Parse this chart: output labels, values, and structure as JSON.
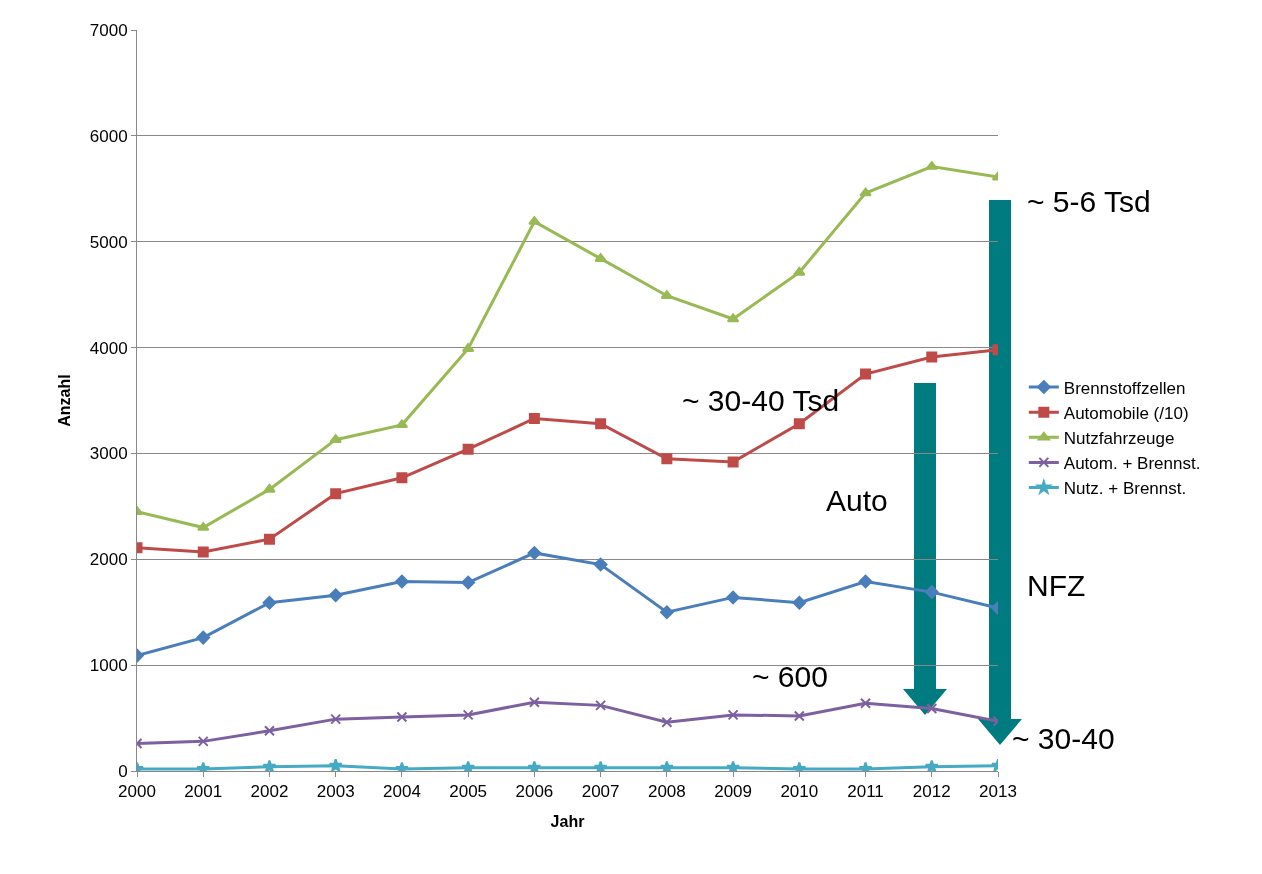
{
  "chart_data": {
    "type": "line",
    "xlabel": "Jahr",
    "ylabel": "Anzahl",
    "x": [
      2000,
      2001,
      2002,
      2003,
      2004,
      2005,
      2006,
      2007,
      2008,
      2009,
      2010,
      2011,
      2012,
      2013
    ],
    "xlim": [
      2000,
      2013
    ],
    "xticks": [
      2000,
      2001,
      2002,
      2003,
      2004,
      2005,
      2006,
      2007,
      2008,
      2009,
      2010,
      2011,
      2012,
      2013
    ],
    "ylim": [
      0,
      7000
    ],
    "yticks": [
      0,
      1000,
      2000,
      3000,
      4000,
      5000,
      6000,
      7000
    ],
    "grid": "y",
    "legend": "right",
    "series": [
      {
        "name": "Brennstoffzellen",
        "color": "#4a7ebb",
        "marker": "diamond",
        "values": [
          1090,
          1260,
          1590,
          1660,
          1790,
          1780,
          2060,
          1950,
          1500,
          1640,
          1590,
          1790,
          1690,
          1540
        ]
      },
      {
        "name": "Automobile (/10)",
        "color": "#be4b48",
        "marker": "square",
        "values": [
          2110,
          2070,
          2190,
          2620,
          2770,
          3040,
          3330,
          3280,
          2950,
          2920,
          3280,
          3750,
          3910,
          3980
        ]
      },
      {
        "name": "Nutzfahrzeuge",
        "color": "#98b954",
        "marker": "triangle",
        "values": [
          2450,
          2300,
          2660,
          3130,
          3270,
          3990,
          5190,
          4840,
          4490,
          4270,
          4710,
          5460,
          5710,
          5610
        ]
      },
      {
        "name": "Autom. + Brennst.",
        "color": "#7d60a0",
        "marker": "cross",
        "values": [
          260,
          280,
          380,
          490,
          510,
          530,
          650,
          620,
          460,
          530,
          520,
          640,
          590,
          470
        ]
      },
      {
        "name": "Nutz. + Brennst.",
        "color": "#46aac5",
        "marker": "star",
        "values": [
          20,
          20,
          40,
          50,
          20,
          30,
          30,
          30,
          30,
          30,
          20,
          20,
          40,
          50
        ]
      }
    ],
    "annotations": [
      "~ 5-6 Tsd",
      "~ 30-40 Tsd",
      "Auto",
      "NFZ",
      "~ 600",
      "~ 30-40"
    ]
  }
}
